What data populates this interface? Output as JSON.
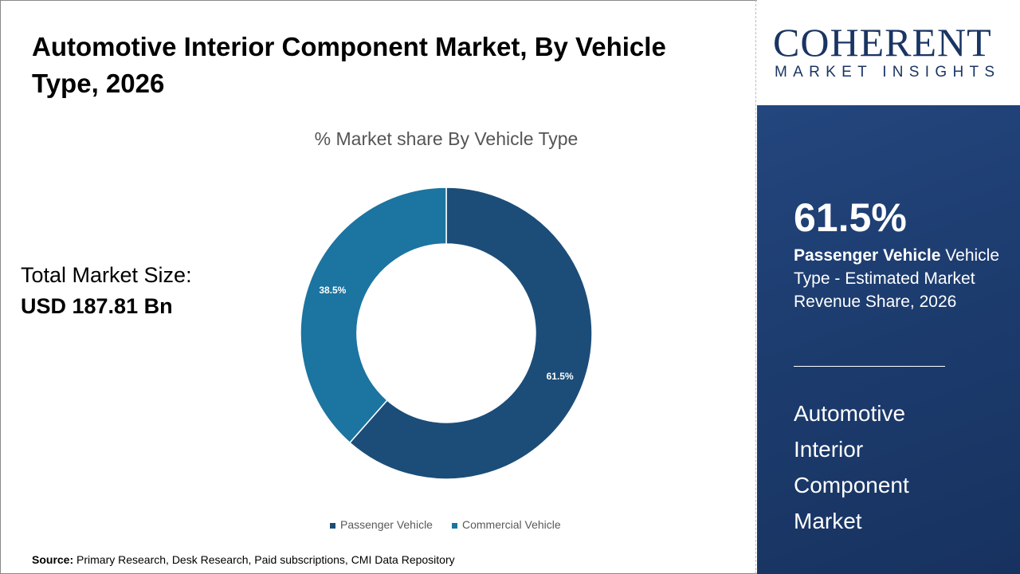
{
  "title": "Automotive Interior Component Market, By Vehicle Type, 2026",
  "total": {
    "label": "Total Market Size:",
    "value": "USD 187.81 Bn"
  },
  "source": {
    "label": "Source:",
    "text": " Primary Research, Desk Research, Paid subscriptions, CMI Data Repository"
  },
  "logo": {
    "main": "COHERENT",
    "sub": "MARKET INSIGHTS"
  },
  "panel": {
    "pct": "61.5%",
    "bold": "Passenger Vehicle",
    "desc": " Vehicle Type - Estimated Market Revenue Share, 2026",
    "market": "Automotive Interior Component Market"
  },
  "chart_data": {
    "type": "pie",
    "donut": true,
    "title": "% Market share By Vehicle Type",
    "categories": [
      "Passenger Vehicle",
      "Commercial Vehicle"
    ],
    "values": [
      61.5,
      38.5
    ],
    "labels": [
      "61.5%",
      "38.5%"
    ],
    "colors": [
      "#1b4d78",
      "#1c74a0"
    ],
    "legend": "bottom"
  }
}
